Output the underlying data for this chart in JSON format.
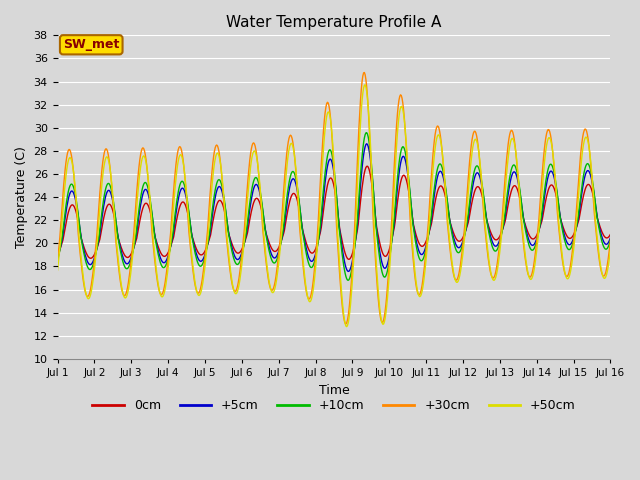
{
  "title": "Water Temperature Profile A",
  "xlabel": "Time",
  "ylabel": "Temperature (C)",
  "ylim": [
    10,
    38
  ],
  "yticks": [
    10,
    12,
    14,
    16,
    18,
    20,
    22,
    24,
    26,
    28,
    30,
    32,
    34,
    36,
    38
  ],
  "series_labels": [
    "0cm",
    "+5cm",
    "+10cm",
    "+30cm",
    "+50cm"
  ],
  "series_colors": [
    "#cc0000",
    "#0000cc",
    "#00bb00",
    "#ff8800",
    "#dddd00"
  ],
  "legend_label": "SW_met",
  "legend_box_color": "#ffdd00",
  "legend_text_color": "#880000",
  "background_color": "#d8d8d8",
  "plot_bg_color": "#d8d8d8",
  "grid_color": "#ffffff",
  "xtick_labels": [
    "Jul 1",
    "Jul 2",
    "Jul 3",
    "Jul 4",
    "Jul 5",
    "Jul 6",
    "Jul 7",
    "Jul 8",
    "Jul 9",
    "Jul 10",
    "Jul 11",
    "Jul 12",
    "Jul 13",
    "Jul 14",
    "Jul 15",
    "Jul 16"
  ],
  "n_days": 15,
  "pts_per_day": 48
}
